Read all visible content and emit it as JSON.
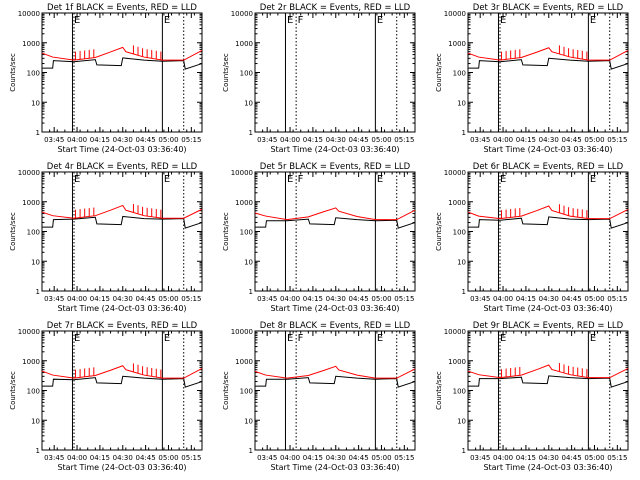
{
  "colors": {
    "events": "#000000",
    "lld": "#ff0000",
    "axis": "#000000"
  },
  "chart_data": {
    "type": "line",
    "layout": "3x3 grid of panels",
    "shared": {
      "ylabel": "Counts/sec",
      "xlabel": "Start Time (24-Oct-03 03:36:40)",
      "yscale": "log",
      "ylim": [
        1,
        10000
      ],
      "yticks": [
        1,
        10,
        100,
        1000,
        10000
      ],
      "ytick_labels": [
        "1",
        "10",
        "100",
        "1000",
        "10000"
      ],
      "x_range_min": [
        -5,
        100
      ],
      "xticks_min": [
        3,
        18,
        33,
        48,
        63,
        78,
        93
      ],
      "xtick_labels": [
        "03:45",
        "04:00",
        "04:15",
        "04:30",
        "04:45",
        "05:00",
        "05:15"
      ],
      "series": [
        "BLACK = Events",
        "RED = LLD"
      ]
    },
    "panels": [
      {
        "title": "Det 1f BLACK = Events, RED = LLD",
        "vlines": [
          {
            "x_min": 15,
            "style": "solid",
            "label": "E"
          },
          {
            "x_min": 16,
            "style": "dotted",
            "label": ""
          },
          {
            "x_min": 74,
            "style": "solid",
            "label": "E"
          },
          {
            "x_min": 88,
            "style": "dotted",
            "label": ""
          }
        ],
        "events": {
          "x_min": [
            -5,
            2,
            2.5,
            16,
            30,
            31,
            47,
            48,
            62,
            74,
            88,
            89,
            100
          ],
          "y": [
            140,
            140,
            250,
            230,
            270,
            180,
            170,
            310,
            260,
            240,
            250,
            130,
            200
          ]
        },
        "lld": {
          "x_min": [
            -5,
            2,
            16,
            30,
            40,
            48,
            50,
            62,
            74,
            88,
            100
          ],
          "y": [
            450,
            330,
            260,
            320,
            490,
            700,
            500,
            330,
            260,
            260,
            550
          ]
        },
        "spikes_x_min": [
          17,
          20,
          23,
          26,
          29,
          55,
          58,
          61,
          64,
          67,
          70,
          73
        ]
      },
      {
        "title": "Det 2r BLACK = Events, RED = LLD",
        "vlines": [
          {
            "x_min": 15,
            "style": "solid",
            "label": "E"
          },
          {
            "x_min": 22,
            "style": "dotted",
            "label": "F"
          },
          {
            "x_min": 74,
            "style": "solid",
            "label": "E"
          },
          {
            "x_min": 88,
            "style": "dotted",
            "label": ""
          }
        ],
        "events": null,
        "lld": null,
        "spikes_x_min": []
      },
      {
        "title": "Det 3r BLACK = Events, RED = LLD",
        "vlines": [
          {
            "x_min": 15,
            "style": "solid",
            "label": "E"
          },
          {
            "x_min": 16,
            "style": "dotted",
            "label": ""
          },
          {
            "x_min": 74,
            "style": "solid",
            "label": "E"
          },
          {
            "x_min": 88,
            "style": "dotted",
            "label": ""
          }
        ],
        "events": {
          "x_min": [
            -5,
            2,
            2.5,
            16,
            30,
            31,
            47,
            48,
            62,
            74,
            88,
            89,
            100
          ],
          "y": [
            140,
            140,
            250,
            230,
            270,
            180,
            170,
            300,
            260,
            240,
            250,
            130,
            200
          ]
        },
        "lld": {
          "x_min": [
            -5,
            2,
            16,
            30,
            40,
            48,
            50,
            62,
            74,
            88,
            100
          ],
          "y": [
            450,
            330,
            260,
            320,
            480,
            680,
            500,
            330,
            260,
            260,
            550
          ]
        },
        "spikes_x_min": [
          17,
          20,
          23,
          26,
          29,
          55,
          58,
          61,
          64,
          67,
          70,
          73
        ]
      },
      {
        "title": "Det 4r BLACK = Events, RED = LLD",
        "vlines": [
          {
            "x_min": 15,
            "style": "solid",
            "label": "E"
          },
          {
            "x_min": 16,
            "style": "dotted",
            "label": ""
          },
          {
            "x_min": 74,
            "style": "solid",
            "label": "E"
          },
          {
            "x_min": 88,
            "style": "dotted",
            "label": ""
          }
        ],
        "events": {
          "x_min": [
            -5,
            2,
            2.5,
            16,
            30,
            31,
            47,
            48,
            62,
            74,
            88,
            89,
            100
          ],
          "y": [
            140,
            140,
            250,
            260,
            300,
            180,
            170,
            320,
            270,
            260,
            270,
            130,
            200
          ]
        },
        "lld": {
          "x_min": [
            -5,
            2,
            16,
            30,
            40,
            48,
            50,
            62,
            74,
            88,
            100
          ],
          "y": [
            450,
            340,
            280,
            340,
            520,
            750,
            520,
            340,
            280,
            280,
            560
          ]
        },
        "spikes_x_min": [
          17,
          20,
          23,
          26,
          29,
          55,
          58,
          61,
          64,
          67,
          70,
          73
        ]
      },
      {
        "title": "Det 5r BLACK = Events, RED = LLD",
        "vlines": [
          {
            "x_min": 15,
            "style": "solid",
            "label": "E"
          },
          {
            "x_min": 22,
            "style": "dotted",
            "label": "F"
          },
          {
            "x_min": 74,
            "style": "solid",
            "label": "E"
          },
          {
            "x_min": 88,
            "style": "dotted",
            "label": ""
          }
        ],
        "events": {
          "x_min": [
            -5,
            2,
            2.5,
            16,
            30,
            31,
            47,
            48,
            62,
            74,
            88,
            89,
            100
          ],
          "y": [
            140,
            140,
            230,
            230,
            260,
            180,
            170,
            290,
            250,
            230,
            240,
            130,
            200
          ]
        },
        "lld": {
          "x_min": [
            -5,
            2,
            16,
            30,
            40,
            48,
            50,
            62,
            74,
            88,
            100
          ],
          "y": [
            420,
            330,
            250,
            310,
            460,
            620,
            480,
            320,
            250,
            250,
            520
          ]
        },
        "spikes_x_min": []
      },
      {
        "title": "Det 6r BLACK = Events, RED = LLD",
        "vlines": [
          {
            "x_min": 15,
            "style": "solid",
            "label": "E"
          },
          {
            "x_min": 16,
            "style": "dotted",
            "label": ""
          },
          {
            "x_min": 74,
            "style": "solid",
            "label": "E"
          },
          {
            "x_min": 88,
            "style": "dotted",
            "label": ""
          }
        ],
        "events": {
          "x_min": [
            -5,
            2,
            2.5,
            16,
            30,
            31,
            47,
            48,
            62,
            74,
            88,
            89,
            100
          ],
          "y": [
            140,
            140,
            250,
            240,
            280,
            180,
            170,
            310,
            260,
            250,
            260,
            130,
            200
          ]
        },
        "lld": {
          "x_min": [
            -5,
            2,
            16,
            30,
            40,
            48,
            50,
            62,
            74,
            88,
            100
          ],
          "y": [
            450,
            330,
            270,
            330,
            500,
            720,
            510,
            330,
            270,
            270,
            550
          ]
        },
        "spikes_x_min": [
          17,
          20,
          23,
          26,
          29,
          55,
          58,
          61,
          64,
          67,
          70,
          73
        ]
      },
      {
        "title": "Det 7r BLACK = Events, RED = LLD",
        "vlines": [
          {
            "x_min": 15,
            "style": "solid",
            "label": "E"
          },
          {
            "x_min": 16,
            "style": "dotted",
            "label": ""
          },
          {
            "x_min": 74,
            "style": "solid",
            "label": "E"
          },
          {
            "x_min": 88,
            "style": "dotted",
            "label": ""
          }
        ],
        "events": {
          "x_min": [
            -5,
            2,
            2.5,
            16,
            30,
            31,
            47,
            48,
            62,
            74,
            88,
            89,
            100
          ],
          "y": [
            140,
            140,
            240,
            230,
            270,
            180,
            170,
            300,
            260,
            240,
            250,
            130,
            200
          ]
        },
        "lld": {
          "x_min": [
            -5,
            2,
            16,
            30,
            40,
            48,
            50,
            62,
            74,
            88,
            100
          ],
          "y": [
            450,
            330,
            260,
            320,
            480,
            680,
            500,
            330,
            260,
            260,
            550
          ]
        },
        "spikes_x_min": [
          17,
          20,
          23,
          26,
          29,
          55,
          58,
          61,
          64,
          67,
          70,
          73
        ]
      },
      {
        "title": "Det 8r BLACK = Events, RED = LLD",
        "vlines": [
          {
            "x_min": 15,
            "style": "solid",
            "label": "E"
          },
          {
            "x_min": 22,
            "style": "dotted",
            "label": "F"
          },
          {
            "x_min": 74,
            "style": "solid",
            "label": "E"
          },
          {
            "x_min": 88,
            "style": "dotted",
            "label": ""
          }
        ],
        "events": {
          "x_min": [
            -5,
            2,
            2.5,
            16,
            30,
            31,
            47,
            48,
            62,
            74,
            88,
            89,
            100
          ],
          "y": [
            140,
            140,
            240,
            240,
            270,
            180,
            170,
            300,
            260,
            240,
            250,
            130,
            200
          ]
        },
        "lld": {
          "x_min": [
            -5,
            2,
            16,
            30,
            40,
            48,
            50,
            62,
            74,
            88,
            100
          ],
          "y": [
            440,
            330,
            260,
            320,
            470,
            650,
            490,
            330,
            260,
            260,
            530
          ]
        },
        "spikes_x_min": []
      },
      {
        "title": "Det 9r BLACK = Events, RED = LLD",
        "vlines": [
          {
            "x_min": 15,
            "style": "solid",
            "label": "E"
          },
          {
            "x_min": 16,
            "style": "dotted",
            "label": ""
          },
          {
            "x_min": 74,
            "style": "solid",
            "label": "E"
          },
          {
            "x_min": 88,
            "style": "dotted",
            "label": ""
          }
        ],
        "events": {
          "x_min": [
            -5,
            2,
            2.5,
            16,
            30,
            31,
            47,
            48,
            62,
            74,
            88,
            89,
            100
          ],
          "y": [
            140,
            140,
            250,
            250,
            280,
            180,
            170,
            310,
            270,
            250,
            260,
            130,
            200
          ]
        },
        "lld": {
          "x_min": [
            -5,
            2,
            16,
            30,
            40,
            48,
            50,
            62,
            74,
            88,
            100
          ],
          "y": [
            450,
            340,
            270,
            330,
            500,
            720,
            510,
            340,
            270,
            270,
            550
          ]
        },
        "spikes_x_min": [
          17,
          20,
          23,
          26,
          29,
          55,
          58,
          61,
          64,
          67,
          70,
          73
        ]
      }
    ]
  }
}
